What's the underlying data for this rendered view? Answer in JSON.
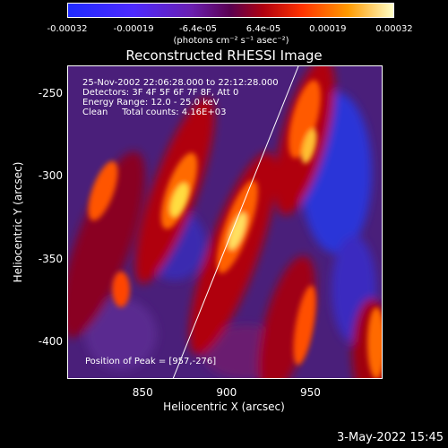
{
  "colorbar": {
    "ticks": [
      "-0.00032",
      "-0.00019",
      "-6.4e-05",
      "6.4e-05",
      "0.00019",
      "0.00032"
    ],
    "units": "(photons cm⁻² s⁻¹ asec⁻²)",
    "range": [
      -0.00032,
      0.00032
    ]
  },
  "chart_data": {
    "type": "heatmap",
    "title": "Reconstructed RHESSI Image",
    "xlabel": "Heliocentric X (arcsec)",
    "ylabel": "Heliocentric Y (arcsec)",
    "xlim": [
      805,
      993
    ],
    "ylim": [
      -423,
      -233
    ],
    "xticks": [
      850,
      900,
      950
    ],
    "yticks": [
      -250,
      -300,
      -350,
      -400
    ],
    "annotations": [
      "25-Nov-2002 22:06:28.000 to 22:12:28.000",
      "Detectors: 3F 4F 5F 6F 7F 8F, Att 0",
      "Energy Range: 12.0 - 25.0 keV",
      "Clean     Total counts: 4.16E+03"
    ],
    "peak_label": "Position of Peak = [957,-276]",
    "peak": [
      957,
      -276
    ],
    "limb_line": [
      [
        868,
        -423
      ],
      [
        943,
        -233
      ]
    ]
  },
  "timestamp": "3-May-2022 15:45"
}
